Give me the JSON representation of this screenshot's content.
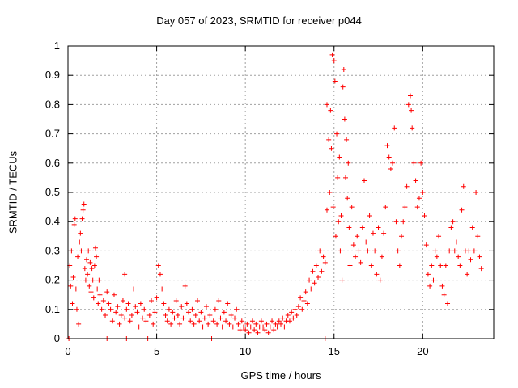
{
  "chart_data": {
    "type": "scatter",
    "title": "Day 057 of 2023, SRMTID for receiver p044",
    "xlabel": "GPS time / hours",
    "ylabel": "SRMTID / TECUs",
    "xlim": [
      0,
      24
    ],
    "ylim": [
      0,
      1
    ],
    "xticks": [
      0,
      5,
      10,
      15,
      20
    ],
    "yticks": [
      0,
      0.1,
      0.2,
      0.3,
      0.4,
      0.5,
      0.6,
      0.7,
      0.8,
      0.9,
      1
    ],
    "xtick_labels": [
      "0",
      "5",
      "10",
      "15",
      "20"
    ],
    "ytick_labels": [
      "0",
      "0.1",
      "0.2",
      "0.3",
      "0.4",
      "0.5",
      "0.6",
      "0.7",
      "0.8",
      "0.9",
      "1"
    ],
    "grid": true,
    "marker": "+",
    "color": "#ff0000",
    "series": [
      {
        "name": "SRMTID",
        "points": [
          [
            0.05,
            0.0
          ],
          [
            0.1,
            0.25
          ],
          [
            0.15,
            0.18
          ],
          [
            0.2,
            0.3
          ],
          [
            0.25,
            0.12
          ],
          [
            0.3,
            0.21
          ],
          [
            0.35,
            0.39
          ],
          [
            0.4,
            0.41
          ],
          [
            0.45,
            0.17
          ],
          [
            0.5,
            0.1
          ],
          [
            0.55,
            0.28
          ],
          [
            0.6,
            0.05
          ],
          [
            0.65,
            0.33
          ],
          [
            0.7,
            0.36
          ],
          [
            0.75,
            0.3
          ],
          [
            0.8,
            0.41
          ],
          [
            0.85,
            0.44
          ],
          [
            0.9,
            0.46
          ],
          [
            0.95,
            0.24
          ],
          [
            1.0,
            0.2
          ],
          [
            1.05,
            0.27
          ],
          [
            1.1,
            0.22
          ],
          [
            1.15,
            0.3
          ],
          [
            1.2,
            0.18
          ],
          [
            1.25,
            0.26
          ],
          [
            1.3,
            0.16
          ],
          [
            1.35,
            0.24
          ],
          [
            1.4,
            0.2
          ],
          [
            1.45,
            0.14
          ],
          [
            1.5,
            0.25
          ],
          [
            1.55,
            0.31
          ],
          [
            1.6,
            0.28
          ],
          [
            1.65,
            0.17
          ],
          [
            1.7,
            0.12
          ],
          [
            1.75,
            0.2
          ],
          [
            1.8,
            0.15
          ],
          [
            1.9,
            0.1
          ],
          [
            2.0,
            0.13
          ],
          [
            2.1,
            0.08
          ],
          [
            2.2,
            0.16
          ],
          [
            2.2,
            0.0
          ],
          [
            2.3,
            0.12
          ],
          [
            2.4,
            0.1
          ],
          [
            2.5,
            0.06
          ],
          [
            2.6,
            0.15
          ],
          [
            2.7,
            0.09
          ],
          [
            2.8,
            0.11
          ],
          [
            2.9,
            0.05
          ],
          [
            3.0,
            0.08
          ],
          [
            3.1,
            0.13
          ],
          [
            3.2,
            0.07
          ],
          [
            3.2,
            0.22
          ],
          [
            3.3,
            0.0
          ],
          [
            3.3,
            0.1
          ],
          [
            3.4,
            0.12
          ],
          [
            3.5,
            0.06
          ],
          [
            3.6,
            0.08
          ],
          [
            3.7,
            0.17
          ],
          [
            3.8,
            0.11
          ],
          [
            3.9,
            0.09
          ],
          [
            4.0,
            0.04
          ],
          [
            4.1,
            0.12
          ],
          [
            4.2,
            0.07
          ],
          [
            4.3,
            0.1
          ],
          [
            4.4,
            0.06
          ],
          [
            4.5,
            0.0
          ],
          [
            4.6,
            0.08
          ],
          [
            4.7,
            0.13
          ],
          [
            4.8,
            0.05
          ],
          [
            4.9,
            0.09
          ],
          [
            5.0,
            0.14
          ],
          [
            5.1,
            0.25
          ],
          [
            5.2,
            0.22
          ],
          [
            5.3,
            0.17
          ],
          [
            5.4,
            0.12
          ],
          [
            5.5,
            0.08
          ],
          [
            5.6,
            0.06
          ],
          [
            5.7,
            0.1
          ],
          [
            5.8,
            0.05
          ],
          [
            5.9,
            0.09
          ],
          [
            6.0,
            0.07
          ],
          [
            6.1,
            0.13
          ],
          [
            6.2,
            0.08
          ],
          [
            6.3,
            0.05
          ],
          [
            6.4,
            0.11
          ],
          [
            6.5,
            0.07
          ],
          [
            6.6,
            0.18
          ],
          [
            6.7,
            0.12
          ],
          [
            6.8,
            0.09
          ],
          [
            6.9,
            0.06
          ],
          [
            7.0,
            0.1
          ],
          [
            7.1,
            0.05
          ],
          [
            7.2,
            0.08
          ],
          [
            7.3,
            0.13
          ],
          [
            7.4,
            0.06
          ],
          [
            7.5,
            0.09
          ],
          [
            7.6,
            0.04
          ],
          [
            7.7,
            0.07
          ],
          [
            7.8,
            0.11
          ],
          [
            7.9,
            0.05
          ],
          [
            8.0,
            0.08
          ],
          [
            8.1,
            0.0
          ],
          [
            8.2,
            0.06
          ],
          [
            8.3,
            0.1
          ],
          [
            8.4,
            0.05
          ],
          [
            8.5,
            0.13
          ],
          [
            8.6,
            0.07
          ],
          [
            8.7,
            0.04
          ],
          [
            8.8,
            0.09
          ],
          [
            8.9,
            0.06
          ],
          [
            9.0,
            0.12
          ],
          [
            9.1,
            0.05
          ],
          [
            9.2,
            0.08
          ],
          [
            9.3,
            0.04
          ],
          [
            9.4,
            0.07
          ],
          [
            9.5,
            0.1
          ],
          [
            9.6,
            0.05
          ],
          [
            9.7,
            0.03
          ],
          [
            9.8,
            0.06
          ],
          [
            9.9,
            0.04
          ],
          [
            10.0,
            0.03
          ],
          [
            10.1,
            0.05
          ],
          [
            10.2,
            0.02
          ],
          [
            10.3,
            0.04
          ],
          [
            10.4,
            0.06
          ],
          [
            10.5,
            0.03
          ],
          [
            10.6,
            0.05
          ],
          [
            10.7,
            0.02
          ],
          [
            10.8,
            0.04
          ],
          [
            10.9,
            0.06
          ],
          [
            11.0,
            0.04
          ],
          [
            11.1,
            0.03
          ],
          [
            11.2,
            0.05
          ],
          [
            11.3,
            0.02
          ],
          [
            11.4,
            0.04
          ],
          [
            11.5,
            0.06
          ],
          [
            11.6,
            0.03
          ],
          [
            11.7,
            0.05
          ],
          [
            11.8,
            0.04
          ],
          [
            11.9,
            0.06
          ],
          [
            12.0,
            0.05
          ],
          [
            12.1,
            0.07
          ],
          [
            12.2,
            0.04
          ],
          [
            12.3,
            0.06
          ],
          [
            12.4,
            0.08
          ],
          [
            12.5,
            0.06
          ],
          [
            12.6,
            0.09
          ],
          [
            12.7,
            0.07
          ],
          [
            12.8,
            0.1
          ],
          [
            12.9,
            0.08
          ],
          [
            13.0,
            0.11
          ],
          [
            13.1,
            0.14
          ],
          [
            13.2,
            0.1
          ],
          [
            13.3,
            0.13
          ],
          [
            13.4,
            0.16
          ],
          [
            13.5,
            0.12
          ],
          [
            13.6,
            0.2
          ],
          [
            13.7,
            0.17
          ],
          [
            13.8,
            0.23
          ],
          [
            13.9,
            0.19
          ],
          [
            14.0,
            0.25
          ],
          [
            14.1,
            0.21
          ],
          [
            14.2,
            0.3
          ],
          [
            14.3,
            0.23
          ],
          [
            14.4,
            0.28
          ],
          [
            14.5,
            0.26
          ],
          [
            14.5,
            0.0
          ],
          [
            14.6,
            0.44
          ],
          [
            14.6,
            0.8
          ],
          [
            14.7,
            0.68
          ],
          [
            14.75,
            0.5
          ],
          [
            14.8,
            0.78
          ],
          [
            14.85,
            0.65
          ],
          [
            14.9,
            0.97
          ],
          [
            14.95,
            0.45
          ],
          [
            15.0,
            0.95
          ],
          [
            15.05,
            0.88
          ],
          [
            15.1,
            0.35
          ],
          [
            15.15,
            0.7
          ],
          [
            15.2,
            0.55
          ],
          [
            15.25,
            0.4
          ],
          [
            15.3,
            0.62
          ],
          [
            15.35,
            0.3
          ],
          [
            15.4,
            0.42
          ],
          [
            15.45,
            0.2
          ],
          [
            15.5,
            0.86
          ],
          [
            15.55,
            0.92
          ],
          [
            15.6,
            0.75
          ],
          [
            15.65,
            0.55
          ],
          [
            15.7,
            0.68
          ],
          [
            15.75,
            0.48
          ],
          [
            15.8,
            0.6
          ],
          [
            15.85,
            0.38
          ],
          [
            15.9,
            0.25
          ],
          [
            16.0,
            0.45
          ],
          [
            16.1,
            0.32
          ],
          [
            16.2,
            0.28
          ],
          [
            16.3,
            0.35
          ],
          [
            16.4,
            0.3
          ],
          [
            16.5,
            0.26
          ],
          [
            16.6,
            0.38
          ],
          [
            16.7,
            0.54
          ],
          [
            16.8,
            0.33
          ],
          [
            16.9,
            0.3
          ],
          [
            17.0,
            0.42
          ],
          [
            17.1,
            0.25
          ],
          [
            17.2,
            0.36
          ],
          [
            17.3,
            0.3
          ],
          [
            17.4,
            0.22
          ],
          [
            17.5,
            0.38
          ],
          [
            17.6,
            0.2
          ],
          [
            17.7,
            0.28
          ],
          [
            17.8,
            0.36
          ],
          [
            17.9,
            0.45
          ],
          [
            18.0,
            0.66
          ],
          [
            18.1,
            0.62
          ],
          [
            18.2,
            0.58
          ],
          [
            18.3,
            0.6
          ],
          [
            18.4,
            0.72
          ],
          [
            18.5,
            0.4
          ],
          [
            18.6,
            0.3
          ],
          [
            18.7,
            0.25
          ],
          [
            18.8,
            0.35
          ],
          [
            18.9,
            0.4
          ],
          [
            19.0,
            0.45
          ],
          [
            19.1,
            0.52
          ],
          [
            19.2,
            0.8
          ],
          [
            19.3,
            0.83
          ],
          [
            19.35,
            0.78
          ],
          [
            19.4,
            0.72
          ],
          [
            19.5,
            0.6
          ],
          [
            19.6,
            0.54
          ],
          [
            19.7,
            0.45
          ],
          [
            19.8,
            0.48
          ],
          [
            19.9,
            0.6
          ],
          [
            20.0,
            0.5
          ],
          [
            20.1,
            0.42
          ],
          [
            20.2,
            0.32
          ],
          [
            20.3,
            0.22
          ],
          [
            20.4,
            0.18
          ],
          [
            20.5,
            0.25
          ],
          [
            20.6,
            0.2
          ],
          [
            20.7,
            0.3
          ],
          [
            20.8,
            0.28
          ],
          [
            20.9,
            0.35
          ],
          [
            21.0,
            0.25
          ],
          [
            21.1,
            0.18
          ],
          [
            21.2,
            0.15
          ],
          [
            21.3,
            0.25
          ],
          [
            21.4,
            0.12
          ],
          [
            21.5,
            0.3
          ],
          [
            21.6,
            0.38
          ],
          [
            21.7,
            0.4
          ],
          [
            21.8,
            0.3
          ],
          [
            21.9,
            0.33
          ],
          [
            22.0,
            0.28
          ],
          [
            22.1,
            0.25
          ],
          [
            22.2,
            0.44
          ],
          [
            22.3,
            0.52
          ],
          [
            22.4,
            0.3
          ],
          [
            22.5,
            0.22
          ],
          [
            22.6,
            0.3
          ],
          [
            22.7,
            0.27
          ],
          [
            22.8,
            0.38
          ],
          [
            22.9,
            0.3
          ],
          [
            23.0,
            0.5
          ],
          [
            23.1,
            0.35
          ],
          [
            23.2,
            0.28
          ],
          [
            23.3,
            0.24
          ]
        ]
      }
    ]
  }
}
